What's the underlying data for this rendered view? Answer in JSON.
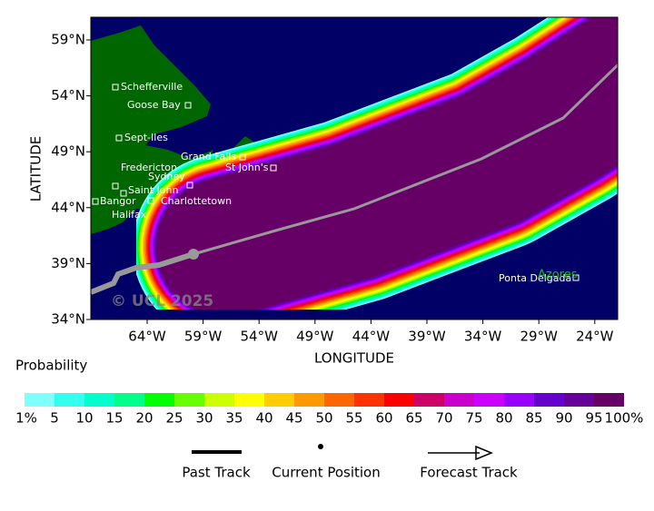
{
  "map": {
    "x_axis": {
      "label": "LONGITUDE",
      "ticks": [
        "64°W",
        "59°W",
        "54°W",
        "49°W",
        "44°W",
        "39°W",
        "34°W",
        "29°W",
        "24°W"
      ]
    },
    "y_axis": {
      "label": "LATITUDE",
      "ticks": [
        "59°N",
        "54°N",
        "49°N",
        "44°N",
        "39°N",
        "34°N"
      ]
    },
    "places": [
      "Schefferville",
      "Goose Bay",
      "Sept-Iles",
      "Grand Falls",
      "Fredericton",
      "St John's",
      "Sydney",
      "Saint John",
      "Bangor",
      "Charlottetown",
      "Halifax",
      "Ponta Delgada"
    ],
    "region": "Azores",
    "watermark": "© UCL 2025"
  },
  "legend": {
    "title": "Probability",
    "colors": [
      "#80ffff",
      "#33ffee",
      "#00ffcc",
      "#00ff88",
      "#00ff00",
      "#66ff00",
      "#ccff00",
      "#ffff00",
      "#ffcc00",
      "#ff9900",
      "#ff6600",
      "#ff3300",
      "#ff0000",
      "#cc0066",
      "#cc00cc",
      "#cc00ff",
      "#9900ff",
      "#6600cc",
      "#660099",
      "#660066"
    ],
    "labels": [
      "1%",
      "5",
      "10",
      "15",
      "20",
      "25",
      "30",
      "35",
      "40",
      "45",
      "50",
      "55",
      "60",
      "65",
      "70",
      "75",
      "80",
      "85",
      "90",
      "95",
      "100%"
    ],
    "track": [
      "Past Track",
      "Current Position",
      "Forecast Track"
    ]
  }
}
